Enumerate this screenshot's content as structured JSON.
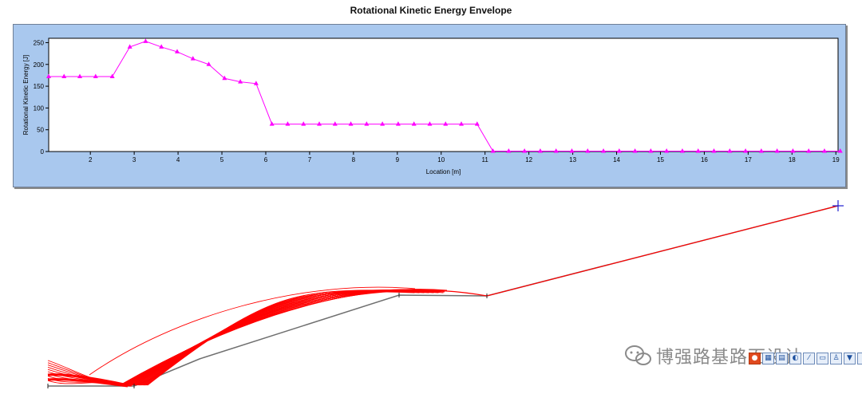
{
  "chart_data": {
    "type": "line",
    "title": "Rotational Kinetic Energy Envelope",
    "xlabel": "Location [m]",
    "ylabel": "Rotational Kinetic Energy [J]",
    "xlim": [
      1.05,
      19.05
    ],
    "ylim": [
      0,
      260
    ],
    "xticks": [
      2,
      3,
      4,
      5,
      6,
      7,
      8,
      9,
      10,
      11,
      12,
      13,
      14,
      15,
      16,
      17,
      18,
      19
    ],
    "yticks": [
      0,
      50,
      100,
      150,
      200,
      250
    ],
    "grid": false,
    "line_color": "#ff00ff",
    "marker": "triangle",
    "x": [
      1.05,
      1.4,
      1.76,
      2.12,
      2.5,
      2.9,
      3.26,
      3.62,
      3.98,
      4.34,
      4.7,
      5.06,
      5.42,
      5.78,
      6.14,
      6.5,
      6.86,
      7.22,
      7.58,
      7.94,
      8.3,
      8.66,
      9.02,
      9.38,
      9.74,
      10.1,
      10.46,
      10.82,
      11.18,
      11.54,
      11.9,
      12.26,
      12.62,
      12.98,
      13.34,
      13.7,
      14.06,
      14.42,
      14.78,
      15.14,
      15.5,
      15.86,
      16.22,
      16.58,
      16.94,
      17.3,
      17.66,
      18.02,
      18.38,
      18.74,
      19.1
    ],
    "y": [
      172,
      172,
      172,
      172,
      172,
      240,
      253,
      240,
      229,
      213,
      200,
      168,
      160,
      156,
      63,
      63,
      63,
      63,
      63,
      63,
      63,
      63,
      63,
      63,
      63,
      63,
      63,
      63,
      1,
      1,
      1,
      1,
      1,
      1,
      1,
      1,
      1,
      1,
      1,
      1,
      1,
      1,
      1,
      1,
      1,
      1,
      1,
      1,
      1,
      1,
      1
    ]
  },
  "watermark": {
    "text": "博强路基路面设计"
  },
  "colors": {
    "panel": "#a9c8ee",
    "trajectory": "#ff0000",
    "slope": "#707070"
  }
}
